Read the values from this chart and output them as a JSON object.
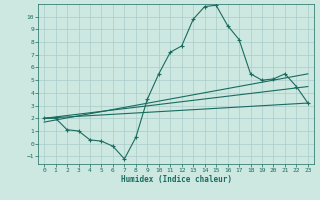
{
  "xlabel": "Humidex (Indice chaleur)",
  "background_color": "#cce8e0",
  "grid_color": "#aacccc",
  "line_color": "#1a6b60",
  "xlim": [
    -0.5,
    23.5
  ],
  "ylim": [
    -1.6,
    11.0
  ],
  "xticks": [
    0,
    1,
    2,
    3,
    4,
    5,
    6,
    7,
    8,
    9,
    10,
    11,
    12,
    13,
    14,
    15,
    16,
    17,
    18,
    19,
    20,
    21,
    22,
    23
  ],
  "yticks": [
    -1,
    0,
    1,
    2,
    3,
    4,
    5,
    6,
    7,
    8,
    9,
    10
  ],
  "line1_x": [
    0,
    1,
    2,
    3,
    4,
    5,
    6,
    7,
    8,
    9,
    10,
    11,
    12,
    13,
    14,
    15,
    16,
    17,
    18,
    19,
    20,
    21,
    22,
    23
  ],
  "line1_y": [
    2.0,
    2.0,
    1.1,
    1.0,
    0.3,
    0.2,
    -0.2,
    -1.2,
    0.5,
    3.5,
    5.5,
    7.2,
    7.7,
    9.8,
    10.8,
    10.9,
    9.3,
    8.2,
    5.5,
    5.0,
    5.1,
    5.5,
    4.5,
    3.2
  ],
  "line2_x": [
    0,
    23
  ],
  "line2_y": [
    2.0,
    3.2
  ],
  "line3_x": [
    0,
    23
  ],
  "line3_y": [
    2.0,
    4.5
  ],
  "line4_x": [
    0,
    23
  ],
  "line4_y": [
    1.7,
    5.5
  ]
}
